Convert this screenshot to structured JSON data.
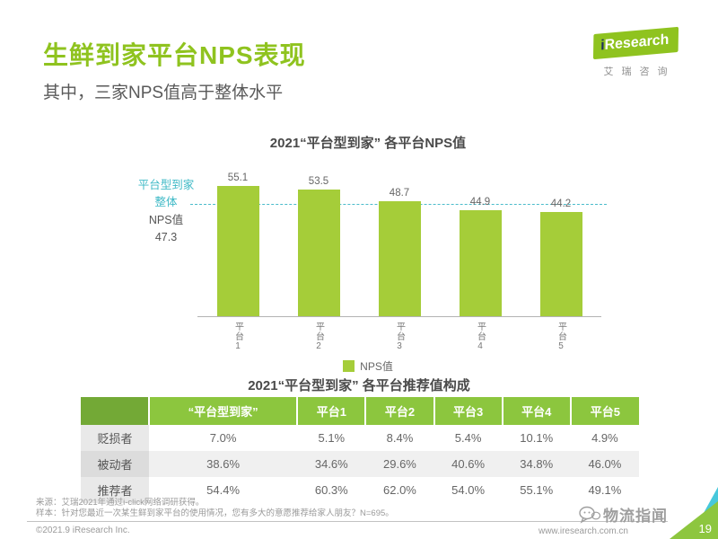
{
  "page": {
    "title": "生鲜到家平台NPS表现",
    "subtitle": "其中，三家NPS值高于整体水平",
    "page_number": "19"
  },
  "logo": {
    "brand_i": "i",
    "brand": "Research",
    "subtext": "艾瑞咨询"
  },
  "chart_data": {
    "type": "bar",
    "title": "2021“平台型到家” 各平台NPS值",
    "categories": [
      "平台1",
      "平台2",
      "平台3",
      "平台4",
      "平台5"
    ],
    "values": [
      55.1,
      53.5,
      48.7,
      44.9,
      44.2
    ],
    "ylim": [
      0,
      65
    ],
    "grid": false,
    "legend": [
      "NPS值"
    ],
    "legend_position": "bottom-center",
    "reference_line": {
      "value": 47.3,
      "label_lines": [
        "平台型到家",
        "整体",
        "NPS值",
        "47.3"
      ]
    },
    "colors": {
      "bar": "#a5cd39",
      "reference_line": "#4bbccb",
      "accent_green": "#8fc31f",
      "table_header_green": "#8cc63e",
      "table_header_dark_green": "#73a936",
      "teal": "#3eb9c6"
    }
  },
  "table": {
    "title": "2021“平台型到家” 各平台推荐值构成",
    "headers": [
      "“平台型到家”",
      "平台1",
      "平台2",
      "平台3",
      "平台4",
      "平台5"
    ],
    "rows": [
      {
        "label": "贬损者",
        "values": [
          "7.0%",
          "5.1%",
          "8.4%",
          "5.4%",
          "10.1%",
          "4.9%"
        ]
      },
      {
        "label": "被动者",
        "values": [
          "38.6%",
          "34.6%",
          "29.6%",
          "40.6%",
          "34.8%",
          "46.0%"
        ]
      },
      {
        "label": "推荐者",
        "values": [
          "54.4%",
          "60.3%",
          "62.0%",
          "54.0%",
          "55.1%",
          "49.1%"
        ]
      }
    ]
  },
  "footer": {
    "source": "来源：艾瑞2021年通过i-click网络调研获得。",
    "sample": "样本：针对您最近一次某生鲜到家平台的使用情况，您有多大的意愿推荐给家人朋友？N=695。",
    "copyright": "©2021.9 iResearch Inc.",
    "website": "www.iresearch.com.cn",
    "watermark": "物流指闻"
  }
}
